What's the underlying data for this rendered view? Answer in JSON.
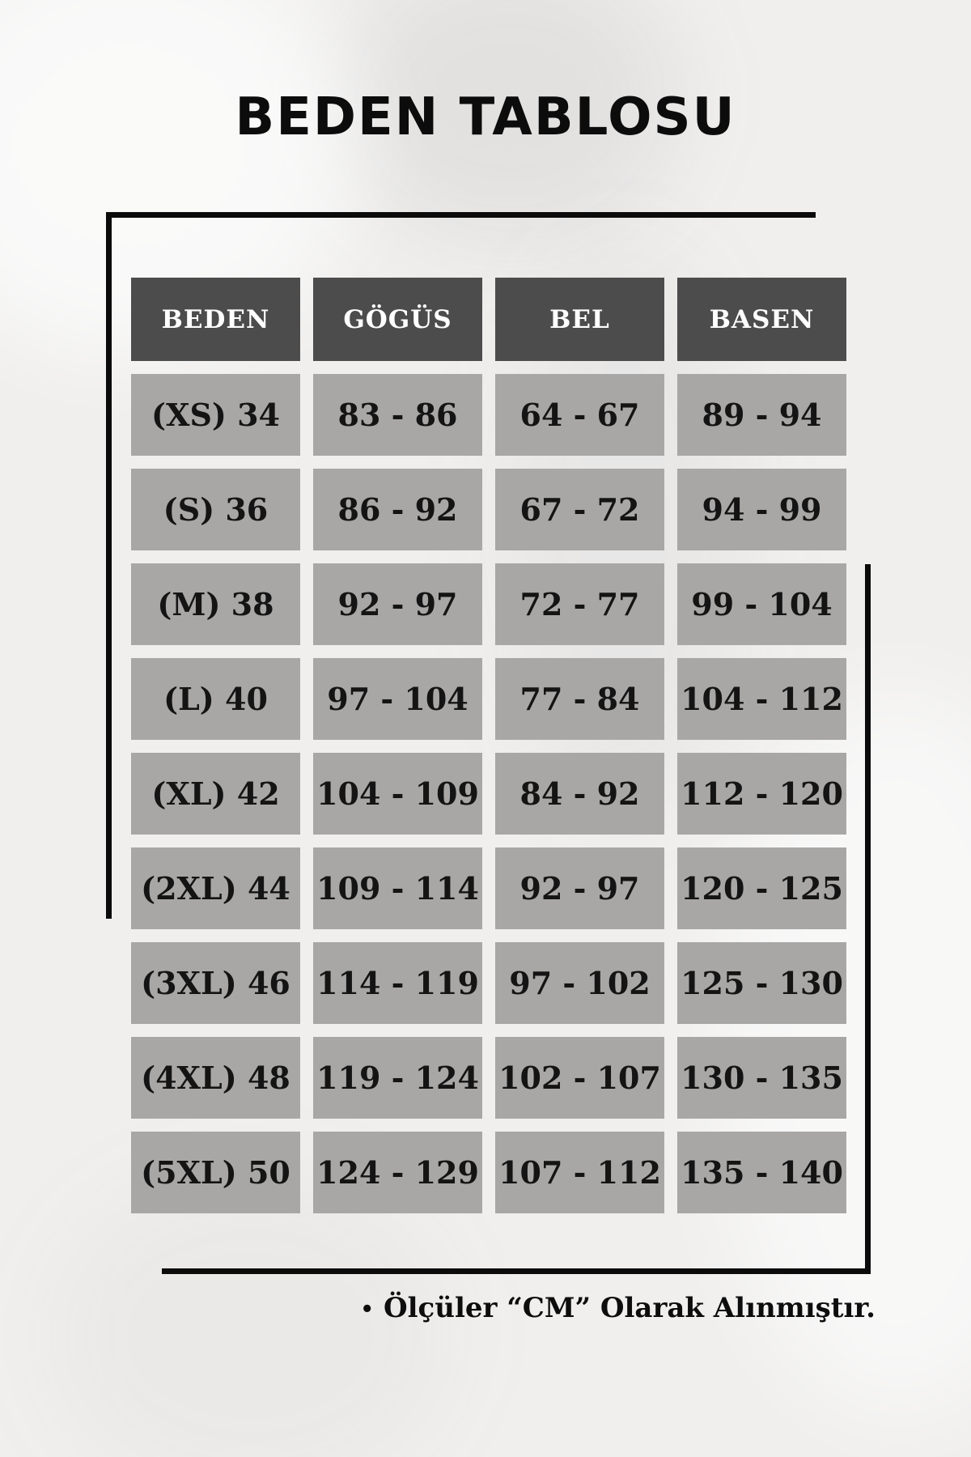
{
  "page": {
    "title": "BEDEN TABLOSU",
    "note_bullet": "•",
    "note_text": "Ölçüler “CM” Olarak Alınmıştır."
  },
  "chart_data": {
    "type": "table",
    "title": "BEDEN TABLOSU",
    "headers": [
      "BEDEN",
      "GÖGÜS",
      "BEL",
      "BASEN"
    ],
    "rows": [
      [
        "(XS) 34",
        "83 - 86",
        "64 - 67",
        "89 - 94"
      ],
      [
        "(S) 36",
        "86 - 92",
        "67 - 72",
        "94 - 99"
      ],
      [
        "(M) 38",
        "92 - 97",
        "72 - 77",
        "99 - 104"
      ],
      [
        "(L) 40",
        "97 - 104",
        "77 - 84",
        "104 - 112"
      ],
      [
        "(XL) 42",
        "104 - 109",
        "84 - 92",
        "112 - 120"
      ],
      [
        "(2XL) 44",
        "109 - 114",
        "92 - 97",
        "120 - 125"
      ],
      [
        "(3XL) 46",
        "114 - 119",
        "97 - 102",
        "125 - 130"
      ],
      [
        "(4XL) 48",
        "119 - 124",
        "102 - 107",
        "130 - 135"
      ],
      [
        "(5XL) 50",
        "124 - 129",
        "107 - 112",
        "135 - 140"
      ]
    ],
    "footnote": "Ölçüler “CM” Olarak Alınmıştır.",
    "units": "CM"
  },
  "colors": {
    "page_bg": "#f0efee",
    "header_bg": "#4d4c4d",
    "header_text": "#ffffff",
    "cell_bg": "#a8a7a6",
    "cell_text": "#141414",
    "accent_line": "#0b0b0b"
  }
}
